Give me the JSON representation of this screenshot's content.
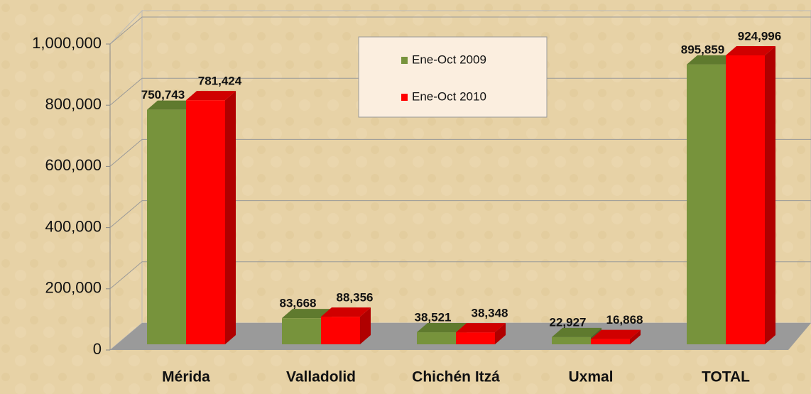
{
  "chart_data": {
    "type": "bar3d",
    "categories": [
      "Mérida",
      "Valladolid",
      "Chichén Itzá",
      "Uxmal",
      "TOTAL"
    ],
    "series": [
      {
        "name": "Ene-Oct 2009",
        "color": "#77933c",
        "values": [
          750743,
          83668,
          38521,
          22927,
          895859
        ],
        "value_labels": [
          "750,743",
          "83,668",
          "38,521",
          "22,927",
          "895,859"
        ]
      },
      {
        "name": "Ene-Oct 2010",
        "color": "#ff0000",
        "values": [
          781424,
          88356,
          38348,
          16868,
          924996
        ],
        "value_labels": [
          "781,424",
          "88,356",
          "38,348",
          "16,868",
          "924,996"
        ]
      }
    ],
    "ylim": [
      0,
      1000000
    ],
    "yticks": [
      0,
      {
        "value": 200000,
        "label": "200,000"
      },
      {
        "value": 400000,
        "label": "400,000"
      },
      {
        "value": 600000,
        "label": "600,000"
      },
      {
        "value": 800000,
        "label": "800,000"
      },
      {
        "value": 1000000,
        "label": "1,000,000"
      }
    ],
    "grid": true,
    "legend": "top"
  }
}
